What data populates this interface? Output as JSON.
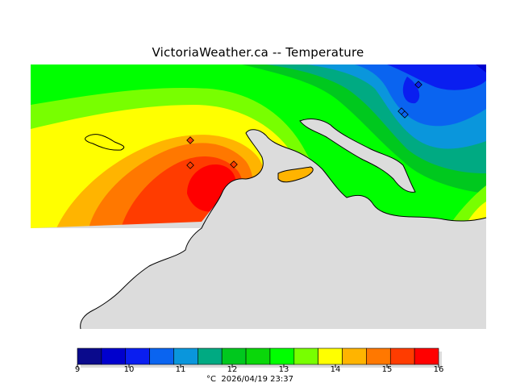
{
  "title": "VictoriaWeather.ca -- Temperature",
  "legend": {
    "unit": "°C",
    "timestamp": "2026/04/19 23:37",
    "tick_labels": [
      "9",
      "10",
      "11",
      "12",
      "13",
      "14",
      "15",
      "16"
    ],
    "colors": [
      "#0a0a8c",
      "#0000cd",
      "#0a1ef0",
      "#0a64f0",
      "#0a96dc",
      "#00aa82",
      "#00c81e",
      "#0ad70a",
      "#00ff00",
      "#78ff00",
      "#ffff00",
      "#ffb400",
      "#ff7800",
      "#ff3c00",
      "#ff0000"
    ]
  },
  "map": {
    "land_color": "#dcdcdc",
    "station_markers": 6
  }
}
